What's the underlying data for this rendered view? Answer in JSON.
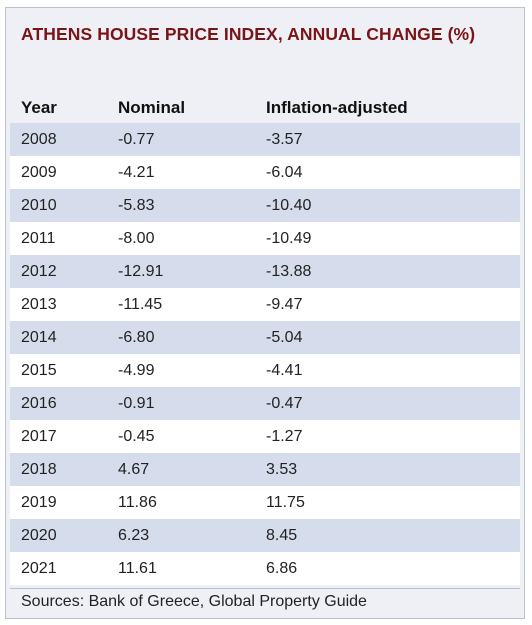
{
  "chart_data": {
    "type": "table",
    "title": "ATHENS HOUSE PRICE INDEX, ANNUAL CHANGE (%)",
    "columns": [
      "Year",
      "Nominal",
      "Inflation-adjusted"
    ],
    "rows": [
      [
        "2008",
        "-0.77",
        "-3.57"
      ],
      [
        "2009",
        "-4.21",
        "-6.04"
      ],
      [
        "2010",
        "-5.83",
        "-10.40"
      ],
      [
        "2011",
        "-8.00",
        "-10.49"
      ],
      [
        "2012",
        "-12.91",
        "-13.88"
      ],
      [
        "2013",
        "-11.45",
        "-9.47"
      ],
      [
        "2014",
        "-6.80",
        "-5.04"
      ],
      [
        "2015",
        "-4.99",
        "-4.41"
      ],
      [
        "2016",
        "-0.91",
        "-0.47"
      ],
      [
        "2017",
        "-0.45",
        "-1.27"
      ],
      [
        "2018",
        "4.67",
        "3.53"
      ],
      [
        "2019",
        "11.86",
        "11.75"
      ],
      [
        "2020",
        "6.23",
        "8.45"
      ],
      [
        "2021",
        "11.61",
        "6.86"
      ]
    ],
    "source": "Sources: Bank of Greece, Global Property Guide"
  },
  "colors": {
    "title": "#7a1416",
    "row_band": "#d5dcec",
    "panel": "#eef0f6",
    "border": "#b9c0cf"
  }
}
